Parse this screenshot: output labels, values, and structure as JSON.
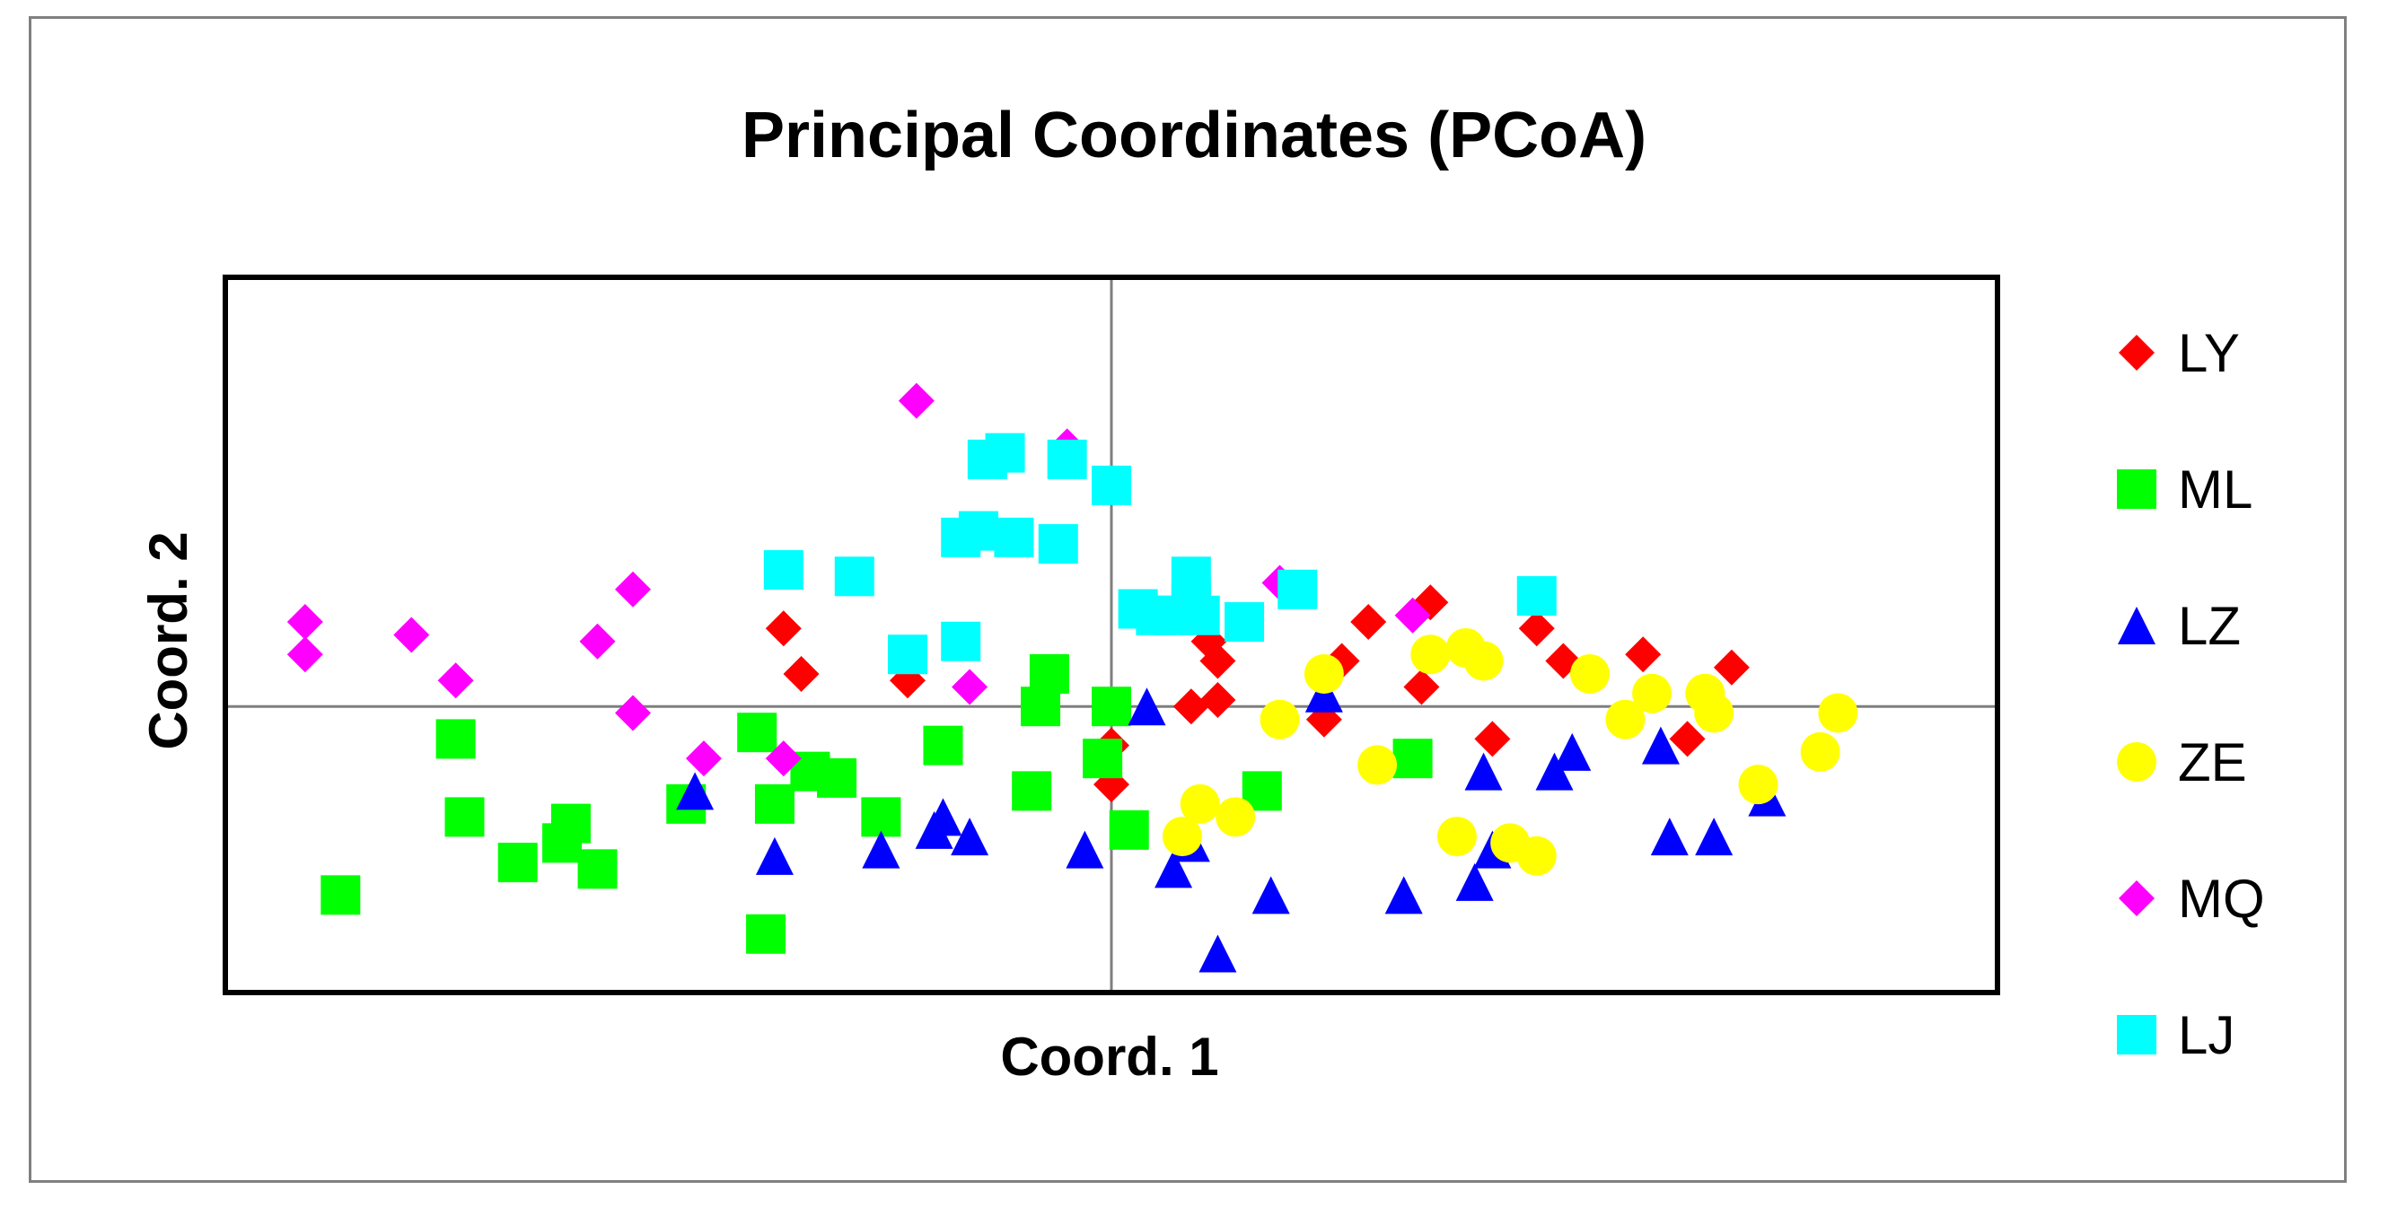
{
  "chart_data": {
    "type": "scatter",
    "title": "Principal Coordinates (PCoA)",
    "xlabel": "Coord. 1",
    "ylabel": "Coord. 2",
    "xlim": [
      -1.0,
      1.0
    ],
    "ylim": [
      -0.44,
      0.66
    ],
    "grid": false,
    "zero_lines": true,
    "legend_position": "right",
    "series": [
      {
        "name": "LY",
        "marker": "diamond",
        "color": "#ff0000",
        "points": [
          [
            -0.37,
            0.12
          ],
          [
            -0.35,
            0.05
          ],
          [
            -0.23,
            0.04
          ],
          [
            0.11,
            0.1
          ],
          [
            0.12,
            0.07
          ],
          [
            0.12,
            0.01
          ],
          [
            0.09,
            0.0
          ],
          [
            0.24,
            -0.02
          ],
          [
            0.26,
            0.07
          ],
          [
            0.29,
            0.13
          ],
          [
            0.36,
            0.16
          ],
          [
            0.35,
            0.03
          ],
          [
            0.43,
            -0.05
          ],
          [
            0.48,
            0.12
          ],
          [
            0.51,
            0.07
          ],
          [
            0.6,
            0.08
          ],
          [
            0.65,
            -0.05
          ],
          [
            0.7,
            0.06
          ],
          [
            0.0,
            -0.06
          ],
          [
            0.0,
            -0.12
          ]
        ]
      },
      {
        "name": "ML",
        "marker": "square",
        "color": "#00ff00",
        "points": [
          [
            -0.87,
            -0.29
          ],
          [
            -0.74,
            -0.05
          ],
          [
            -0.73,
            -0.17
          ],
          [
            -0.67,
            -0.24
          ],
          [
            -0.62,
            -0.21
          ],
          [
            -0.61,
            -0.18
          ],
          [
            -0.58,
            -0.25
          ],
          [
            -0.48,
            -0.15
          ],
          [
            -0.4,
            -0.04
          ],
          [
            -0.39,
            -0.35
          ],
          [
            -0.38,
            -0.15
          ],
          [
            -0.34,
            -0.1
          ],
          [
            -0.31,
            -0.11
          ],
          [
            -0.26,
            -0.17
          ],
          [
            -0.19,
            -0.06
          ],
          [
            -0.09,
            -0.13
          ],
          [
            -0.08,
            0.0
          ],
          [
            -0.07,
            0.05
          ],
          [
            0.0,
            0.0
          ],
          [
            0.02,
            -0.19
          ],
          [
            -0.01,
            -0.08
          ],
          [
            0.17,
            -0.13
          ],
          [
            0.34,
            -0.08
          ]
        ]
      },
      {
        "name": "LZ",
        "marker": "triangle",
        "color": "#0000ff",
        "points": [
          [
            -0.47,
            -0.13
          ],
          [
            -0.38,
            -0.23
          ],
          [
            -0.26,
            -0.22
          ],
          [
            -0.2,
            -0.19
          ],
          [
            -0.19,
            -0.17
          ],
          [
            -0.16,
            -0.2
          ],
          [
            -0.03,
            -0.22
          ],
          [
            0.04,
            0.0
          ],
          [
            0.07,
            -0.25
          ],
          [
            0.09,
            -0.21
          ],
          [
            0.12,
            -0.38
          ],
          [
            0.18,
            -0.29
          ],
          [
            0.24,
            0.02
          ],
          [
            0.33,
            -0.29
          ],
          [
            0.41,
            -0.27
          ],
          [
            0.42,
            -0.1
          ],
          [
            0.43,
            -0.22
          ],
          [
            0.5,
            -0.1
          ],
          [
            0.52,
            -0.07
          ],
          [
            0.62,
            -0.06
          ],
          [
            0.63,
            -0.2
          ],
          [
            0.68,
            -0.2
          ],
          [
            0.74,
            -0.14
          ]
        ]
      },
      {
        "name": "ZE",
        "marker": "circle",
        "color": "#ffff00",
        "points": [
          [
            0.08,
            -0.2
          ],
          [
            0.1,
            -0.15
          ],
          [
            0.14,
            -0.17
          ],
          [
            0.19,
            -0.02
          ],
          [
            0.24,
            0.05
          ],
          [
            0.3,
            -0.09
          ],
          [
            0.36,
            0.08
          ],
          [
            0.4,
            0.09
          ],
          [
            0.42,
            0.07
          ],
          [
            0.39,
            -0.2
          ],
          [
            0.45,
            -0.21
          ],
          [
            0.48,
            -0.23
          ],
          [
            0.54,
            0.05
          ],
          [
            0.58,
            -0.02
          ],
          [
            0.61,
            0.02
          ],
          [
            0.67,
            0.02
          ],
          [
            0.68,
            -0.01
          ],
          [
            0.73,
            -0.12
          ],
          [
            0.8,
            -0.07
          ],
          [
            0.82,
            -0.01
          ]
        ]
      },
      {
        "name": "MQ",
        "marker": "diamond",
        "color": "#ff00ff",
        "points": [
          [
            -0.91,
            0.13
          ],
          [
            -0.91,
            0.08
          ],
          [
            -0.79,
            0.11
          ],
          [
            -0.74,
            0.04
          ],
          [
            -0.58,
            0.1
          ],
          [
            -0.54,
            0.18
          ],
          [
            -0.54,
            -0.01
          ],
          [
            -0.46,
            -0.08
          ],
          [
            -0.37,
            -0.08
          ],
          [
            -0.22,
            0.47
          ],
          [
            -0.16,
            0.03
          ],
          [
            -0.05,
            0.4
          ],
          [
            0.19,
            0.19
          ],
          [
            0.34,
            0.14
          ]
        ]
      },
      {
        "name": "LJ",
        "marker": "square",
        "color": "#00ffff",
        "points": [
          [
            -0.37,
            0.21
          ],
          [
            -0.29,
            0.2
          ],
          [
            -0.23,
            0.08
          ],
          [
            -0.17,
            0.1
          ],
          [
            -0.17,
            0.26
          ],
          [
            -0.15,
            0.27
          ],
          [
            -0.14,
            0.38
          ],
          [
            -0.12,
            0.39
          ],
          [
            -0.11,
            0.26
          ],
          [
            -0.06,
            0.25
          ],
          [
            -0.05,
            0.38
          ],
          [
            0.0,
            0.34
          ],
          [
            0.03,
            0.15
          ],
          [
            0.05,
            0.14
          ],
          [
            0.07,
            0.14
          ],
          [
            0.09,
            0.2
          ],
          [
            0.09,
            0.16
          ],
          [
            0.1,
            0.14
          ],
          [
            0.15,
            0.13
          ],
          [
            0.21,
            0.18
          ],
          [
            0.48,
            0.17
          ]
        ]
      }
    ]
  }
}
